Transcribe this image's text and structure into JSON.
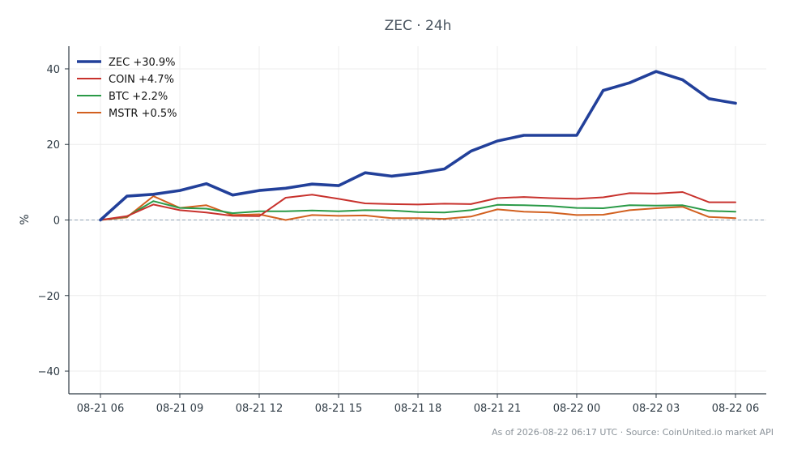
{
  "chart_data": {
    "type": "line",
    "title": "ZEC · 24h",
    "xlabel": "",
    "ylabel": "%",
    "ylim": [
      -46,
      46
    ],
    "yticks": [
      40,
      20,
      0,
      -20,
      -40
    ],
    "ytick_labels": [
      "40",
      "20",
      "0",
      "−20",
      "−40"
    ],
    "xticks": [
      "08-21 06",
      "08-21 09",
      "08-21 12",
      "08-21 15",
      "08-21 18",
      "08-21 21",
      "08-22 00",
      "08-22 03",
      "08-22 06"
    ],
    "x_hours_from_start": [
      0,
      1,
      2,
      3,
      4,
      5,
      6,
      7,
      8,
      9,
      10,
      11,
      12,
      13,
      14,
      15,
      16,
      17,
      18,
      19,
      20,
      21,
      22,
      23,
      24
    ],
    "grid": true,
    "zero_line": true,
    "legend_position": "top-left",
    "series": [
      {
        "name": "ZEC +30.9%",
        "color": "#22409a",
        "width": 3.6,
        "values": [
          0,
          6.3,
          6.8,
          7.8,
          9.6,
          6.6,
          7.8,
          8.4,
          9.5,
          9.1,
          12.5,
          11.6,
          12.4,
          13.5,
          18.2,
          20.9,
          22.4,
          22.4,
          22.4,
          34.3,
          36.3,
          39.3,
          37.1,
          32.1,
          30.9
        ]
      },
      {
        "name": "COIN +4.7%",
        "color": "#c8322d",
        "width": 2,
        "values": [
          0,
          1.0,
          4.1,
          2.6,
          2.0,
          1.1,
          1.0,
          5.9,
          6.7,
          5.6,
          4.4,
          4.2,
          4.1,
          4.3,
          4.2,
          5.8,
          6.1,
          5.8,
          5.6,
          6.0,
          7.1,
          7.0,
          7.4,
          4.7,
          4.7
        ]
      },
      {
        "name": "BTC +2.2%",
        "color": "#2a9a47",
        "width": 2,
        "values": [
          0,
          0.9,
          5.0,
          3.2,
          3.0,
          1.8,
          2.3,
          2.3,
          2.5,
          2.3,
          2.6,
          2.5,
          2.1,
          2.0,
          2.6,
          4.0,
          3.9,
          3.7,
          3.2,
          3.1,
          3.9,
          3.8,
          3.9,
          2.4,
          2.2
        ]
      },
      {
        "name": "MSTR +0.5%",
        "color": "#d2601f",
        "width": 2,
        "values": [
          0,
          0.7,
          6.3,
          3.2,
          3.9,
          1.3,
          1.5,
          0.0,
          1.3,
          1.1,
          1.2,
          0.5,
          0.5,
          0.3,
          0.9,
          2.8,
          2.2,
          2.0,
          1.3,
          1.4,
          2.6,
          3.1,
          3.5,
          0.8,
          0.5
        ]
      }
    ]
  },
  "footer": {
    "text": "As of 2026-08-22 06:17 UTC · Source: CoinUnited.io market API"
  },
  "colors": {
    "grid": "#ececec",
    "axis": "#2e3a44",
    "zero_line": "#8fa0b3",
    "title": "#4a5560"
  }
}
